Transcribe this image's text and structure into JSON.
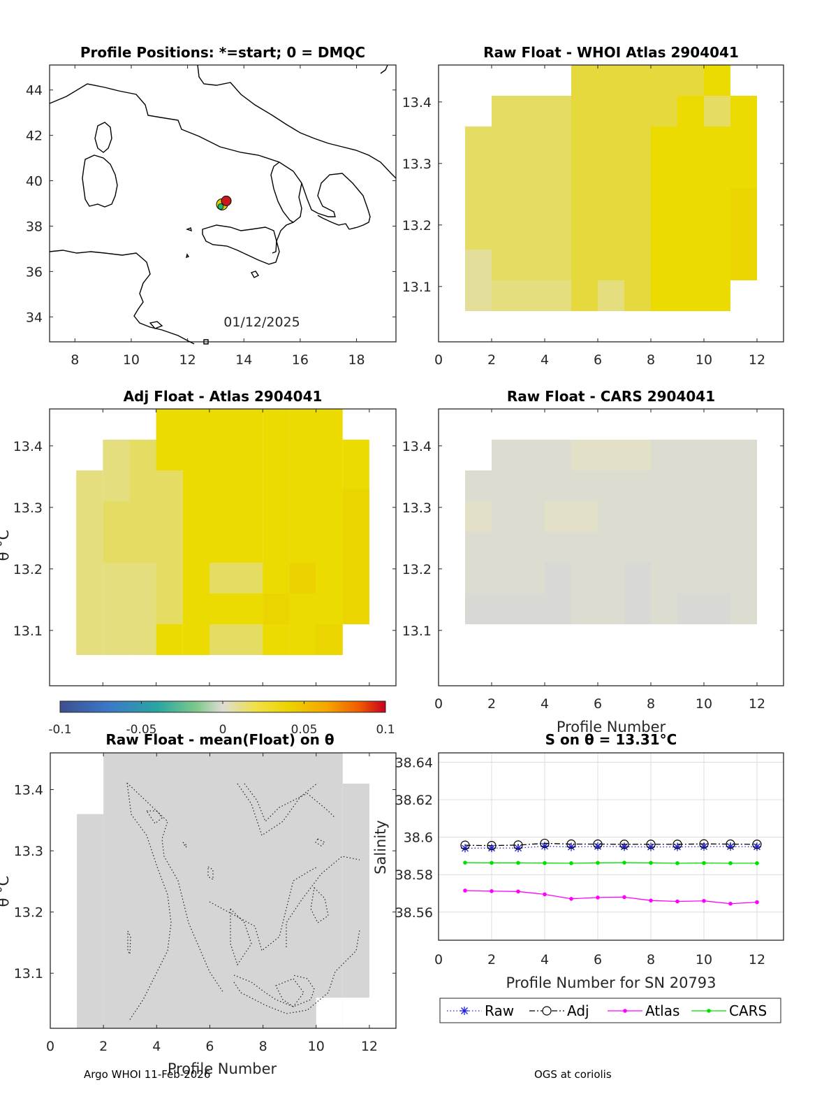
{
  "colors": {
    "frame": "#262626",
    "raw": "#1f1fd8",
    "adj": "#000000",
    "atlas": "#ff00ff",
    "cars": "#00e000",
    "grid": "#dcdcdc",
    "land_line": "#000000"
  },
  "chart_data": [
    {
      "id": "map",
      "type": "map",
      "title": "Profile Positions: *=start; 0 = DMQC",
      "xticks": [
        "8",
        "10",
        "12",
        "14",
        "16",
        "18"
      ],
      "yticks": [
        "44",
        "42",
        "40",
        "38",
        "36",
        "34"
      ],
      "xlim": [
        7.1,
        19.4
      ],
      "ylim": [
        32.9,
        45.1
      ],
      "annotation": "01/12/2025",
      "profiles": {
        "lon": 13.3,
        "lat": 39.05
      }
    },
    {
      "id": "raw_whoi",
      "type": "heatmap",
      "title": "Raw Float - WHOI Atlas  2904041",
      "xticks": [
        "0",
        "2",
        "4",
        "6",
        "8",
        "10",
        "12"
      ],
      "yticks": [
        "13.4",
        "13.3",
        "13.2",
        "13.1"
      ],
      "xlim": [
        0,
        13
      ],
      "ylim": [
        13.01,
        13.46
      ]
    },
    {
      "id": "adj_atlas",
      "type": "heatmap",
      "title": "Adj Float - Atlas  2904041",
      "ylabel": "θ °C",
      "yticks": [
        "13.4",
        "13.3",
        "13.2",
        "13.1"
      ],
      "xlim": [
        0,
        13
      ],
      "ylim": [
        13.01,
        13.46
      ]
    },
    {
      "id": "raw_cars",
      "type": "heatmap",
      "title": "Raw Float - CARS  2904041",
      "xlabel": "Profile Number",
      "xticks": [
        "0",
        "2",
        "4",
        "6",
        "8",
        "10",
        "12"
      ],
      "yticks": [
        "13.4",
        "13.3",
        "13.2",
        "13.1"
      ],
      "xlim": [
        0,
        13
      ],
      "ylim": [
        13.01,
        13.46
      ]
    },
    {
      "id": "colorbar",
      "type": "colorbar",
      "ticks": [
        "-0.1",
        "-0.05",
        "0",
        "0.05",
        "0.1"
      ],
      "range": [
        -0.1,
        0.1
      ]
    },
    {
      "id": "raw_minus_mean",
      "type": "contour",
      "title": "Raw Float - mean(Float) on θ",
      "ylabel": "θ °C",
      "xlabel": "Profile Number",
      "xticks": [
        "0",
        "2",
        "4",
        "6",
        "8",
        "10",
        "12"
      ],
      "yticks": [
        "13.4",
        "13.3",
        "13.2",
        "13.1"
      ],
      "xlim": [
        0,
        13
      ],
      "ylim": [
        13.01,
        13.46
      ]
    },
    {
      "id": "salinity",
      "type": "line",
      "title": "S on θ = 13.31°C",
      "xlabel": "Profile Number for SN 20793",
      "ylabel": "Salinity",
      "xticks": [
        "0",
        "2",
        "4",
        "6",
        "8",
        "10",
        "12"
      ],
      "yticks": [
        "38.64",
        "38.62",
        "38.6",
        "38.58",
        "38.56"
      ],
      "xlim": [
        0,
        13
      ],
      "ylim": [
        38.545,
        38.645
      ],
      "x": [
        1,
        2,
        3,
        4,
        5,
        6,
        7,
        8,
        9,
        10,
        11,
        12
      ],
      "series": [
        {
          "name": "Raw",
          "values": [
            38.5941,
            38.5942,
            38.5942,
            38.5952,
            38.5948,
            38.5951,
            38.5949,
            38.5948,
            38.5948,
            38.595,
            38.595,
            38.5949
          ]
        },
        {
          "name": "Adj",
          "values": [
            38.5957,
            38.5955,
            38.5958,
            38.5967,
            38.5963,
            38.5963,
            38.5962,
            38.5962,
            38.5962,
            38.5964,
            38.5963,
            38.5962
          ]
        },
        {
          "name": "Atlas",
          "values": [
            38.5715,
            38.5712,
            38.571,
            38.5695,
            38.5671,
            38.5678,
            38.568,
            38.5662,
            38.5657,
            38.566,
            38.5645,
            38.5653
          ]
        },
        {
          "name": "CARS",
          "values": [
            38.5864,
            38.5863,
            38.5863,
            38.5862,
            38.5861,
            38.5863,
            38.5864,
            38.5863,
            38.5861,
            38.5862,
            38.5861,
            38.5861
          ]
        }
      ]
    }
  ],
  "footer": {
    "left": "Argo WHOI 11-Feb-2026",
    "right": "OGS at coriolis"
  }
}
